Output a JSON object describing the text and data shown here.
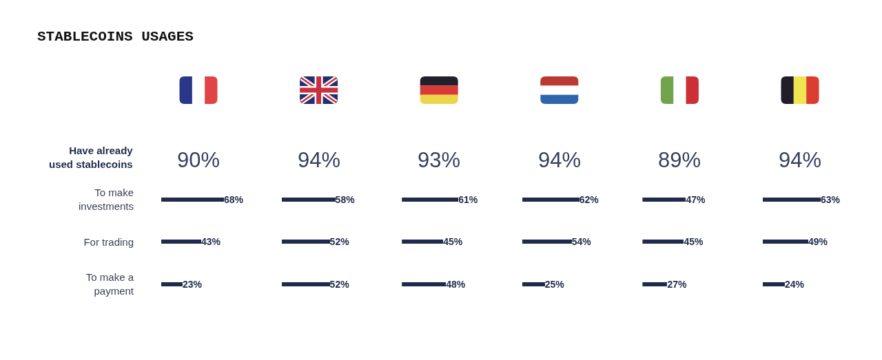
{
  "chart_data": [
    {
      "type": "bar",
      "orientation": "horizontal",
      "title": "STABLECOINS USAGES",
      "subtitle": "90%",
      "annotations": [
        "Have already used stablecoins"
      ],
      "categories": [
        "To make investments",
        "For trading",
        "To make a payment"
      ],
      "values": [
        68,
        43,
        23
      ],
      "value_labels": [
        "68%",
        "43%",
        "23%"
      ],
      "color": "#1e2b4a",
      "tick_labels": "y"
    },
    {
      "type": "bar",
      "orientation": "horizontal",
      "subtitle": "94%",
      "categories": [
        "To make investments",
        "For trading",
        "To make a payment"
      ],
      "values": [
        58,
        52,
        52
      ],
      "value_labels": [
        "58%",
        "52%",
        "52%"
      ],
      "color": "#1e2b4a",
      "tick_labels": false
    },
    {
      "type": "bar",
      "orientation": "horizontal",
      "subtitle": "93%",
      "categories": [
        "To make investments",
        "For trading",
        "To make a payment"
      ],
      "values": [
        61,
        45,
        48
      ],
      "value_labels": [
        "61%",
        "45%",
        "48%"
      ],
      "color": "#1e2b4a",
      "tick_labels": false
    },
    {
      "type": "bar",
      "orientation": "horizontal",
      "subtitle": "94%",
      "categories": [
        "To make investments",
        "For trading",
        "To make a payment"
      ],
      "values": [
        62,
        54,
        25
      ],
      "value_labels": [
        "62%",
        "54%",
        "25%"
      ],
      "color": "#1e2b4a",
      "tick_labels": false
    },
    {
      "type": "bar",
      "orientation": "horizontal",
      "subtitle": "89%",
      "categories": [
        "To make investments",
        "For trading",
        "To make a payment"
      ],
      "values": [
        47,
        45,
        27
      ],
      "value_labels": [
        "47%",
        "45%",
        "27%"
      ],
      "color": "#1e2b4a",
      "tick_labels": false
    },
    {
      "type": "bar",
      "orientation": "horizontal",
      "subtitle": "94%",
      "categories": [
        "To make investments",
        "For trading",
        "To make a payment"
      ],
      "values": [
        63,
        49,
        24
      ],
      "value_labels": [
        "63%",
        "49%",
        "24%"
      ],
      "color": "#1e2b4a",
      "tick_labels": false
    }
  ]
}
